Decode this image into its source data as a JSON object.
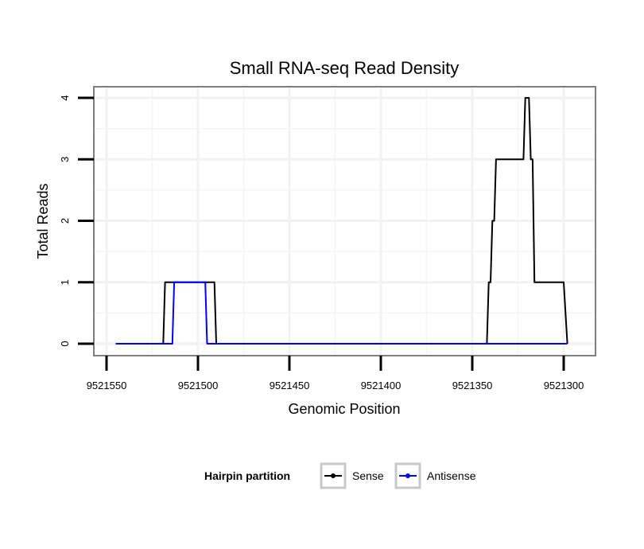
{
  "chart_data": {
    "type": "line",
    "title": "Small RNA-seq Read Density",
    "xlabel": "Genomic Position",
    "ylabel": "Total Reads",
    "x_reversed": true,
    "xlim": [
      9521555,
      9521295
    ],
    "ylim": [
      -0.2,
      4.2
    ],
    "x_ticks": [
      9521550,
      9521500,
      9521450,
      9521400,
      9521350,
      9521300
    ],
    "x_tick_labels": [
      "9521550",
      "9521500",
      "9521450",
      "9521400",
      "9521350",
      "9521300"
    ],
    "y_ticks": [
      0,
      1,
      2,
      3,
      4
    ],
    "y_tick_labels": [
      "0",
      "1",
      "2",
      "3",
      "4"
    ],
    "grid": true,
    "legend": {
      "title": "Hairpin partition",
      "position": "bottom"
    },
    "series": [
      {
        "name": "Sense",
        "color": "#000000",
        "x": [
          9521545,
          9521519,
          9521518,
          9521491,
          9521490,
          9521342,
          9521341,
          9521340,
          9521339,
          9521338,
          9521337,
          9521336,
          9521322,
          9521321,
          9521319,
          9521318,
          9521317,
          9521316,
          9521300,
          9521298
        ],
        "y": [
          0,
          0,
          1,
          1,
          0,
          0,
          1,
          1,
          2,
          2,
          3,
          3,
          3,
          4,
          4,
          3,
          3,
          1,
          1,
          0
        ]
      },
      {
        "name": "Antisense",
        "color": "#0000ff",
        "x": [
          9521545,
          9521514,
          9521513,
          9521496,
          9521495,
          9521298
        ],
        "y": [
          0,
          0,
          1,
          1,
          0,
          0
        ]
      }
    ]
  }
}
